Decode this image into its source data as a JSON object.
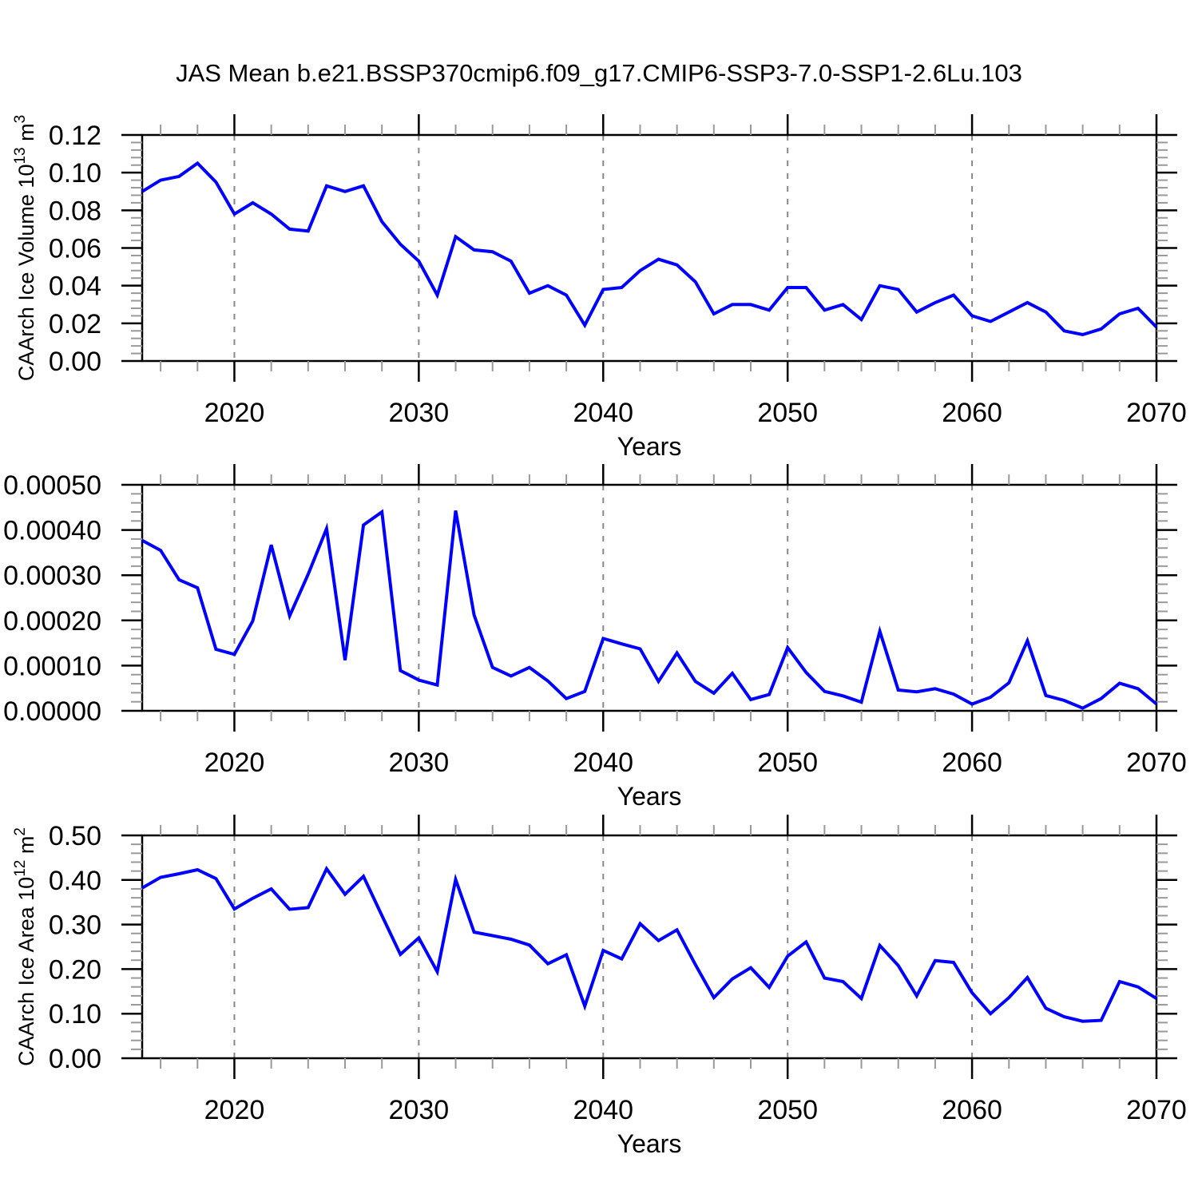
{
  "title": "JAS Mean b.e21.BSSP370cmip6.f09_g17.CMIP6-SSP3-7.0-SSP1-2.6Lu.103",
  "colors": {
    "line": "#0000ff",
    "grid": "#888888",
    "axis": "#000000",
    "minor_tick": "#999999",
    "text": "#000000",
    "background": "#ffffff"
  },
  "x_axis": {
    "label": "Years",
    "range": [
      2015,
      2070
    ],
    "major_ticks": [
      2020,
      2030,
      2040,
      2050,
      2060,
      2070
    ],
    "tick_labels": [
      "2020",
      "2030",
      "2040",
      "2050",
      "2060",
      "2070"
    ],
    "minor_step": 2,
    "grid_years": [
      2020,
      2030,
      2040,
      2050,
      2060
    ]
  },
  "x": [
    2015,
    2016,
    2017,
    2018,
    2019,
    2020,
    2021,
    2022,
    2023,
    2024,
    2025,
    2026,
    2027,
    2028,
    2029,
    2030,
    2031,
    2032,
    2033,
    2034,
    2035,
    2036,
    2037,
    2038,
    2039,
    2040,
    2041,
    2042,
    2043,
    2044,
    2045,
    2046,
    2047,
    2048,
    2049,
    2050,
    2051,
    2052,
    2053,
    2054,
    2055,
    2056,
    2057,
    2058,
    2059,
    2060,
    2061,
    2062,
    2063,
    2064,
    2065,
    2066,
    2067,
    2068,
    2069,
    2070
  ],
  "chart_data": [
    {
      "type": "line",
      "name": "caarch-ice-volume",
      "xlabel": "Years",
      "ylabel_parts": [
        {
          "text": "CAArch Ice Volume 10",
          "sup": false
        },
        {
          "text": "13",
          "sup": true
        },
        {
          "text": " m",
          "sup": false
        },
        {
          "text": "3",
          "sup": true
        }
      ],
      "ylim": [
        0,
        0.12
      ],
      "ytick_values": [
        0,
        0.02,
        0.04,
        0.06,
        0.08,
        0.1,
        0.12
      ],
      "ytick_labels": [
        "0.00",
        "0.02",
        "0.04",
        "0.06",
        "0.08",
        "0.10",
        "0.12"
      ],
      "minors_per_major": 5,
      "legend": "none",
      "grid": "vertical-dashed",
      "values": [
        0.09,
        0.096,
        0.098,
        0.105,
        0.095,
        0.078,
        0.084,
        0.078,
        0.07,
        0.069,
        0.093,
        0.09,
        0.093,
        0.074,
        0.062,
        0.053,
        0.035,
        0.066,
        0.059,
        0.058,
        0.053,
        0.036,
        0.04,
        0.035,
        0.019,
        0.038,
        0.039,
        0.048,
        0.054,
        0.051,
        0.042,
        0.025,
        0.03,
        0.03,
        0.027,
        0.039,
        0.039,
        0.027,
        0.03,
        0.022,
        0.04,
        0.038,
        0.026,
        0.031,
        0.035,
        0.024,
        0.021,
        0.026,
        0.031,
        0.026,
        0.016,
        0.014,
        0.017,
        0.025,
        0.028,
        0.018
      ]
    },
    {
      "type": "line",
      "name": "unlabeled-middle-series",
      "xlabel": "Years",
      "ylabel_parts": [],
      "ylim": [
        0,
        0.0005
      ],
      "ytick_values": [
        0,
        0.0001,
        0.0002,
        0.0003,
        0.0004,
        0.0005
      ],
      "ytick_labels": [
        "0.00000",
        "0.00010",
        "0.00020",
        "0.00030",
        "0.00040",
        "0.00050"
      ],
      "minors_per_major": 5,
      "legend": "none",
      "grid": "vertical-dashed",
      "values": [
        0.000377,
        0.000355,
        0.00029,
        0.000272,
        0.000136,
        0.000125,
        0.000199,
        0.000367,
        0.00021,
        0.000302,
        0.000403,
        0.000112,
        0.000411,
        0.00044,
        8.9e-05,
        6.8e-05,
        5.7e-05,
        0.000443,
        0.000212,
        9.6e-05,
        7.7e-05,
        9.6e-05,
        6.6e-05,
        2.7e-05,
        4.3e-05,
        0.00016,
        0.000148,
        0.000137,
        6.5e-05,
        0.000128,
        6.5e-05,
        3.9e-05,
        8.3e-05,
        2.5e-05,
        3.6e-05,
        0.00014,
        8.5e-05,
        4.3e-05,
        3.3e-05,
        1.9e-05,
        0.000176,
        4.6e-05,
        4.2e-05,
        4.9e-05,
        3.7e-05,
        1.5e-05,
        3e-05,
        6.2e-05,
        0.000155,
        3.4e-05,
        2.3e-05,
        6e-06,
        2.7e-05,
        6.1e-05,
        4.9e-05,
        1.5e-05
      ]
    },
    {
      "type": "line",
      "name": "caarch-ice-area",
      "xlabel": "Years",
      "ylabel_parts": [
        {
          "text": "CAArch Ice Area 10",
          "sup": false
        },
        {
          "text": "12",
          "sup": true
        },
        {
          "text": " m",
          "sup": false
        },
        {
          "text": "2",
          "sup": true
        }
      ],
      "ylim": [
        0,
        0.5
      ],
      "ytick_values": [
        0,
        0.1,
        0.2,
        0.3,
        0.4,
        0.5
      ],
      "ytick_labels": [
        "0.00",
        "0.10",
        "0.20",
        "0.30",
        "0.40",
        "0.50"
      ],
      "minors_per_major": 5,
      "legend": "none",
      "grid": "vertical-dashed",
      "values": [
        0.382,
        0.406,
        0.414,
        0.423,
        0.403,
        0.335,
        0.359,
        0.38,
        0.334,
        0.338,
        0.425,
        0.368,
        0.408,
        0.32,
        0.233,
        0.27,
        0.194,
        0.401,
        0.283,
        0.275,
        0.267,
        0.254,
        0.212,
        0.232,
        0.117,
        0.242,
        0.223,
        0.302,
        0.264,
        0.288,
        0.21,
        0.136,
        0.178,
        0.203,
        0.159,
        0.229,
        0.261,
        0.18,
        0.172,
        0.134,
        0.253,
        0.208,
        0.14,
        0.219,
        0.215,
        0.147,
        0.1,
        0.136,
        0.181,
        0.112,
        0.093,
        0.083,
        0.085,
        0.172,
        0.16,
        0.134
      ]
    }
  ]
}
